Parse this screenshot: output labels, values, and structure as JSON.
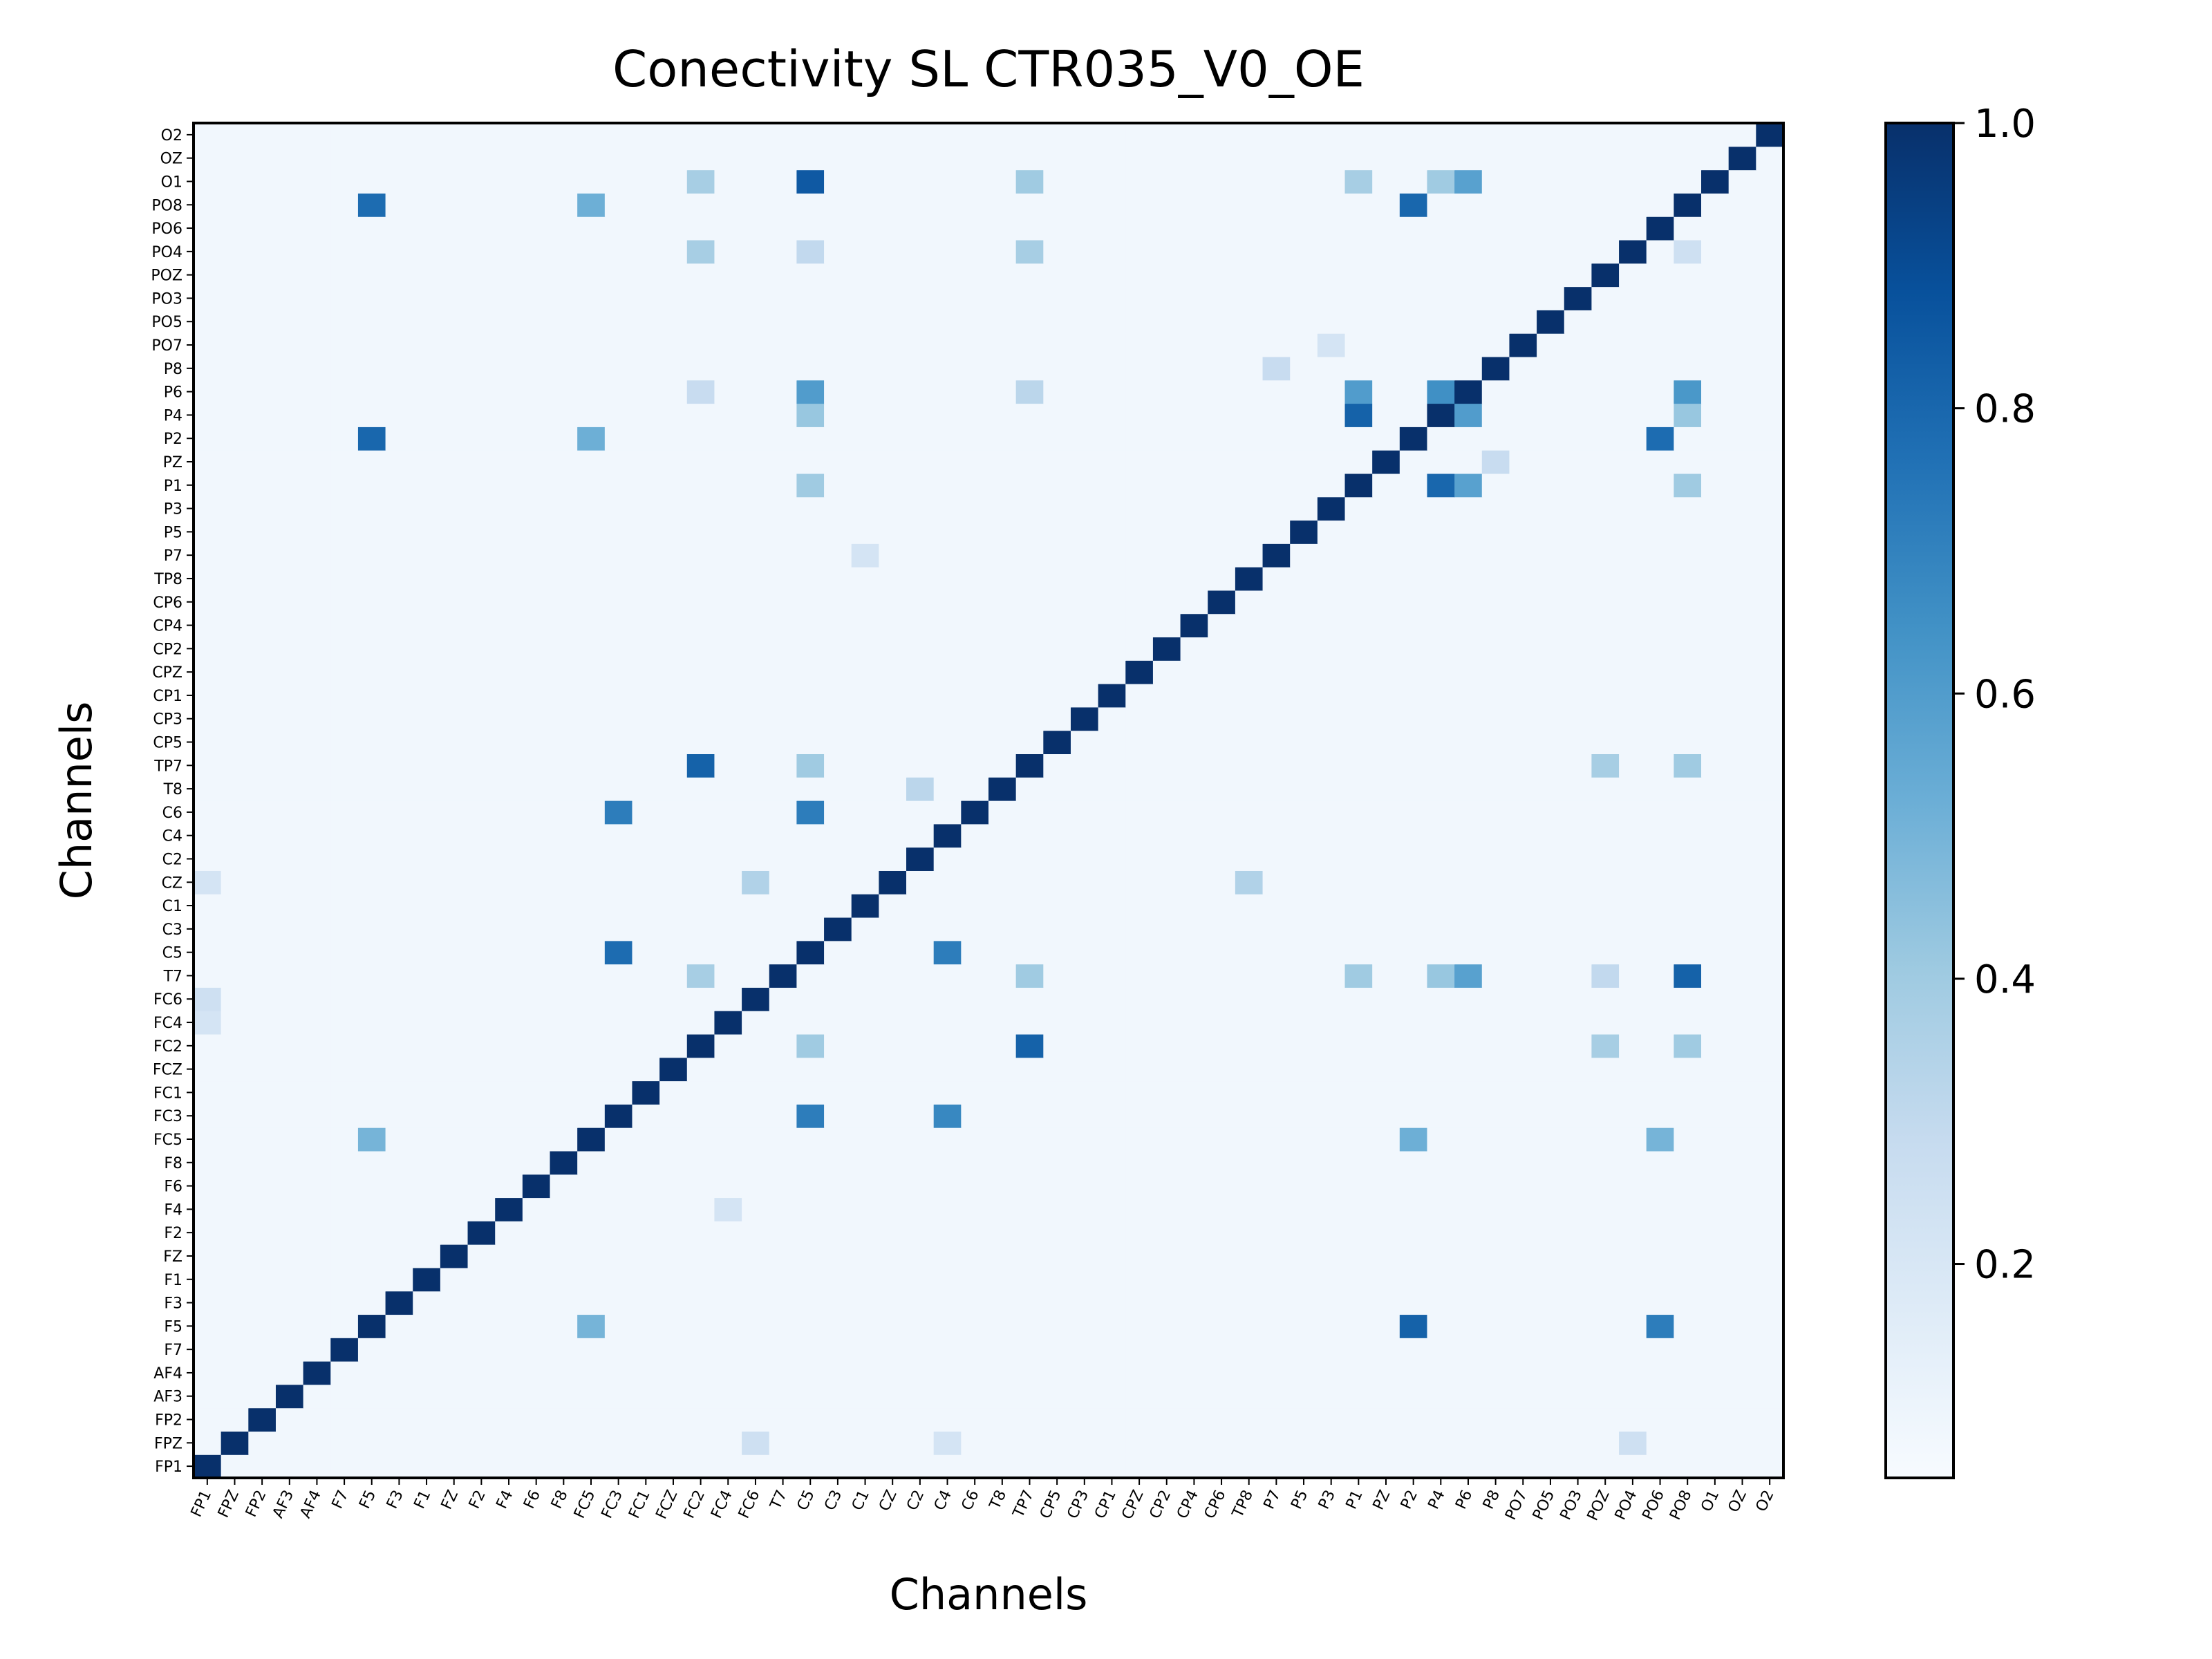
{
  "chart_data": {
    "type": "heatmap",
    "title": "Conectivity SL CTR035_V0_OE",
    "xlabel": "Channels",
    "ylabel": "Channels",
    "channels": [
      "FP1",
      "FPZ",
      "FP2",
      "AF3",
      "AF4",
      "F7",
      "F5",
      "F3",
      "F1",
      "FZ",
      "F2",
      "F4",
      "F6",
      "F8",
      "FC5",
      "FC3",
      "FC1",
      "FCZ",
      "FC2",
      "FC4",
      "FC6",
      "T7",
      "C5",
      "C3",
      "C1",
      "CZ",
      "C2",
      "C4",
      "C6",
      "T8",
      "TP7",
      "CP5",
      "CP3",
      "CP1",
      "CPZ",
      "CP2",
      "CP4",
      "CP6",
      "TP8",
      "P7",
      "P5",
      "P3",
      "P1",
      "PZ",
      "P2",
      "P4",
      "P6",
      "P8",
      "PO7",
      "PO5",
      "PO3",
      "POZ",
      "PO4",
      "PO6",
      "PO8",
      "O1",
      "OZ",
      "O2"
    ],
    "colorbar": {
      "range": [
        0.05,
        1.0
      ],
      "ticks": [
        "0.2",
        "0.4",
        "0.6",
        "0.8",
        "1.0"
      ],
      "tick_values": [
        0.2,
        0.4,
        0.6,
        0.8,
        1.0
      ],
      "colormap": "Blues"
    },
    "background_value": 0.08,
    "diagonal_value": 1.0,
    "cells": [
      {
        "x": "F5",
        "y": "PO8",
        "v": 0.78
      },
      {
        "x": "FC5",
        "y": "PO8",
        "v": 0.52
      },
      {
        "x": "P2",
        "y": "PO8",
        "v": 0.8
      },
      {
        "x": "FC2",
        "y": "O1",
        "v": 0.38
      },
      {
        "x": "C5",
        "y": "O1",
        "v": 0.85
      },
      {
        "x": "TP7",
        "y": "O1",
        "v": 0.4
      },
      {
        "x": "P1",
        "y": "O1",
        "v": 0.38
      },
      {
        "x": "P4",
        "y": "O1",
        "v": 0.4
      },
      {
        "x": "P6",
        "y": "O1",
        "v": 0.58
      },
      {
        "x": "FC2",
        "y": "PO4",
        "v": 0.38
      },
      {
        "x": "C5",
        "y": "PO4",
        "v": 0.3
      },
      {
        "x": "TP7",
        "y": "PO4",
        "v": 0.38
      },
      {
        "x": "FC2",
        "y": "P6",
        "v": 0.28
      },
      {
        "x": "C5",
        "y": "P6",
        "v": 0.6
      },
      {
        "x": "TP7",
        "y": "P6",
        "v": 0.32
      },
      {
        "x": "P1",
        "y": "P6",
        "v": 0.6
      },
      {
        "x": "P4",
        "y": "P6",
        "v": 0.65
      },
      {
        "x": "P6",
        "y": "P6",
        "v": 1.0
      },
      {
        "x": "PO8",
        "y": "P6",
        "v": 0.62
      },
      {
        "x": "C5",
        "y": "P4",
        "v": 0.42
      },
      {
        "x": "P1",
        "y": "P4",
        "v": 0.82
      },
      {
        "x": "P6",
        "y": "P4",
        "v": 0.6
      },
      {
        "x": "PO8",
        "y": "P4",
        "v": 0.42
      },
      {
        "x": "F5",
        "y": "P2",
        "v": 0.8
      },
      {
        "x": "FC5",
        "y": "P2",
        "v": 0.52
      },
      {
        "x": "PO6",
        "y": "P2",
        "v": 0.78
      },
      {
        "x": "C5",
        "y": "P1",
        "v": 0.4
      },
      {
        "x": "P4",
        "y": "P1",
        "v": 0.8
      },
      {
        "x": "P6",
        "y": "P1",
        "v": 0.58
      },
      {
        "x": "PO8",
        "y": "P1",
        "v": 0.4
      },
      {
        "x": "FC2",
        "y": "TP7",
        "v": 0.82
      },
      {
        "x": "C5",
        "y": "TP7",
        "v": 0.4
      },
      {
        "x": "POZ",
        "y": "TP7",
        "v": 0.38
      },
      {
        "x": "PO8",
        "y": "TP7",
        "v": 0.4
      },
      {
        "x": "C2",
        "y": "T8",
        "v": 0.32
      },
      {
        "x": "FC3",
        "y": "C6",
        "v": 0.72
      },
      {
        "x": "C5",
        "y": "C6",
        "v": 0.72
      },
      {
        "x": "FC6",
        "y": "CZ",
        "v": 0.35
      },
      {
        "x": "TP8",
        "y": "CZ",
        "v": 0.35
      },
      {
        "x": "FC3",
        "y": "C5",
        "v": 0.78
      },
      {
        "x": "C4",
        "y": "C5",
        "v": 0.72
      },
      {
        "x": "FC2",
        "y": "T7",
        "v": 0.38
      },
      {
        "x": "TP7",
        "y": "T7",
        "v": 0.4
      },
      {
        "x": "P1",
        "y": "T7",
        "v": 0.4
      },
      {
        "x": "P4",
        "y": "T7",
        "v": 0.42
      },
      {
        "x": "P6",
        "y": "T7",
        "v": 0.58
      },
      {
        "x": "POZ",
        "y": "T7",
        "v": 0.3
      },
      {
        "x": "PO8",
        "y": "T7",
        "v": 0.82
      },
      {
        "x": "C5",
        "y": "FC2",
        "v": 0.4
      },
      {
        "x": "TP7",
        "y": "FC2",
        "v": 0.82
      },
      {
        "x": "POZ",
        "y": "FC2",
        "v": 0.38
      },
      {
        "x": "PO8",
        "y": "FC2",
        "v": 0.4
      },
      {
        "x": "C5",
        "y": "FC3",
        "v": 0.72
      },
      {
        "x": "C4",
        "y": "FC3",
        "v": 0.68
      },
      {
        "x": "F5",
        "y": "FC5",
        "v": 0.5
      },
      {
        "x": "P2",
        "y": "FC5",
        "v": 0.52
      },
      {
        "x": "PO6",
        "y": "FC5",
        "v": 0.5
      },
      {
        "x": "FC5",
        "y": "F5",
        "v": 0.5
      },
      {
        "x": "P2",
        "y": "F5",
        "v": 0.82
      },
      {
        "x": "PO6",
        "y": "F5",
        "v": 0.72
      },
      {
        "x": "FP1",
        "y": "FC6",
        "v": 0.25
      },
      {
        "x": "FP1",
        "y": "FC4",
        "v": 0.22
      },
      {
        "x": "FP1",
        "y": "CZ",
        "v": 0.22
      },
      {
        "x": "FC6",
        "y": "FPZ",
        "v": 0.25
      },
      {
        "x": "C4",
        "y": "FPZ",
        "v": 0.22
      },
      {
        "x": "PO4",
        "y": "FPZ",
        "v": 0.25
      },
      {
        "x": "P7",
        "y": "P8",
        "v": 0.28
      },
      {
        "x": "P8",
        "y": "PZ",
        "v": 0.28
      },
      {
        "x": "PO8",
        "y": "PO4",
        "v": 0.25
      },
      {
        "x": "C1",
        "y": "P7",
        "v": 0.22
      },
      {
        "x": "FC4",
        "y": "F4",
        "v": 0.22
      },
      {
        "x": "P3",
        "y": "PO7",
        "v": 0.22
      }
    ]
  }
}
